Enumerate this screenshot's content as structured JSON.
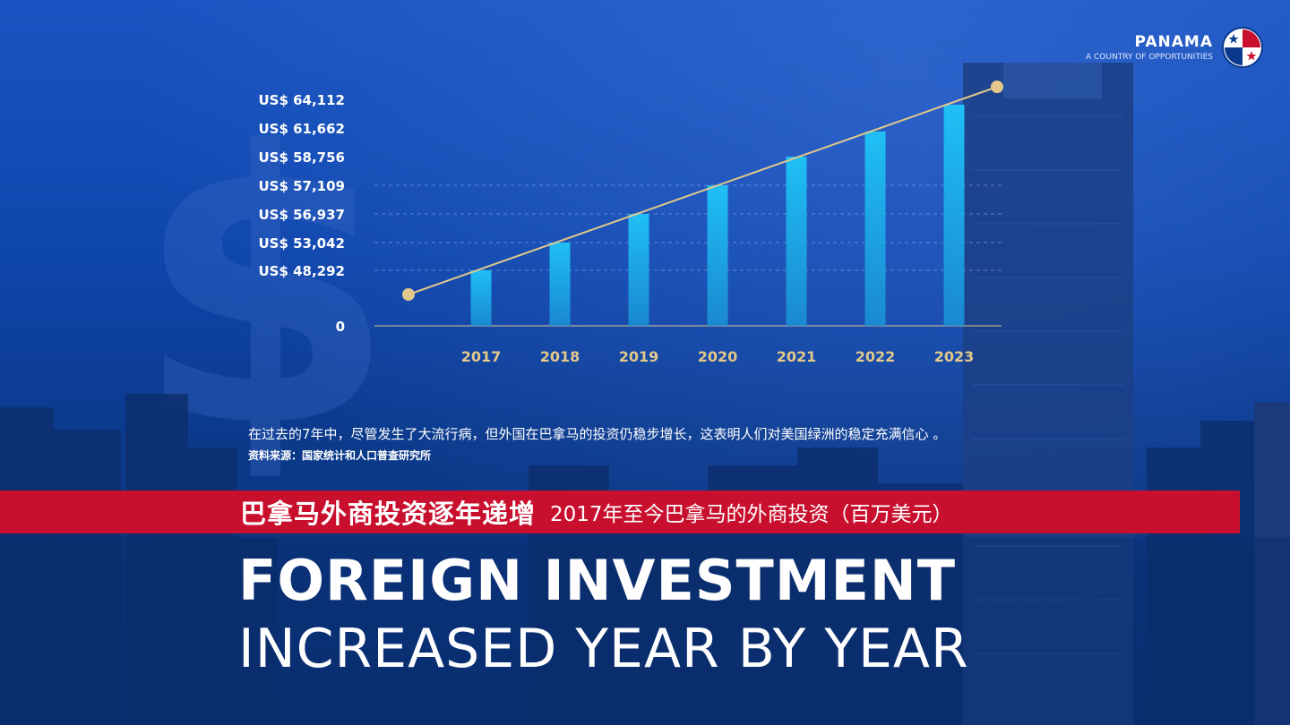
{
  "logo": {
    "title": "PANAMA",
    "subtitle": "A COUNTRY OF OPPORTUNITIES",
    "flag_colors": {
      "blue": "#0b3a8c",
      "red": "#c8102e",
      "white": "#ffffff"
    }
  },
  "chart_data": {
    "type": "bar",
    "categories": [
      "2017",
      "2018",
      "2019",
      "2020",
      "2021",
      "2022",
      "2023"
    ],
    "values": [
      48292,
      53042,
      56937,
      57109,
      58756,
      61662,
      64112
    ],
    "y_tick_labels": [
      "US$ 64,112",
      "US$ 61,662",
      "US$ 58,756",
      "US$ 57,109",
      "US$ 56,937",
      "US$ 53,042",
      "US$ 48,292",
      "0"
    ],
    "ylabel": "",
    "xlabel": "",
    "trend_line": {
      "from": "before 2017",
      "to": "after 2023",
      "color": "#e2c88a"
    },
    "grid": "dashed horizontal lines at tick values",
    "bar_color": "#1fb8f0",
    "tick_label_color": "#e2c88a"
  },
  "note": "在过去的7年中，尽管发生了大流行病，但外国在巴拿马的投资仍稳步增长，这表明人们对美国绿洲的稳定充满信心 。",
  "source": "资料来源：国家统计和人口普查研究所",
  "banner": {
    "title": "巴拿马外商投资逐年递增",
    "subtitle": "2017年至今巴拿马的外商投资（百万美元）",
    "color": "#c8102e"
  },
  "headline": {
    "line1": "FOREIGN INVESTMENT",
    "line2": "INCREASED YEAR BY YEAR"
  }
}
